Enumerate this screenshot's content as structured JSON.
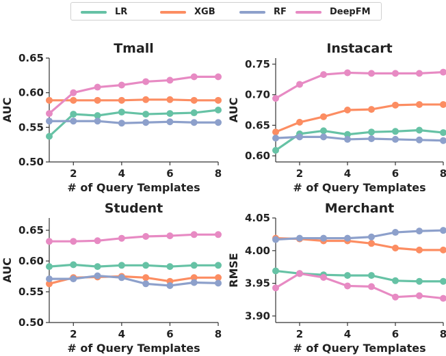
{
  "legend": {
    "items": [
      {
        "label": "LR",
        "color": "#66c2a5"
      },
      {
        "label": "XGB",
        "color": "#fc8d62"
      },
      {
        "label": "RF",
        "color": "#8da0cb"
      },
      {
        "label": "DeepFM",
        "color": "#e78ac3"
      }
    ]
  },
  "chart_data": [
    {
      "type": "line",
      "title": "Tmall",
      "xlabel": "# of Query Templates",
      "ylabel": "AUC",
      "x": [
        1,
        2,
        3,
        4,
        5,
        6,
        7,
        8
      ],
      "xlim": [
        1,
        8
      ],
      "ylim": [
        0.5,
        0.65
      ],
      "xticks": [
        2,
        4,
        6,
        8
      ],
      "yticks": [
        0.5,
        0.55,
        0.6,
        0.65
      ],
      "ytick_labels": [
        "0.50",
        "0.55",
        "0.60",
        "0.65"
      ],
      "series": [
        {
          "name": "LR",
          "values": [
            0.537,
            0.569,
            0.567,
            0.572,
            0.569,
            0.57,
            0.571,
            0.575
          ]
        },
        {
          "name": "XGB",
          "values": [
            0.589,
            0.589,
            0.589,
            0.589,
            0.59,
            0.59,
            0.589,
            0.589
          ]
        },
        {
          "name": "RF",
          "values": [
            0.559,
            0.559,
            0.559,
            0.556,
            0.557,
            0.558,
            0.557,
            0.557
          ]
        },
        {
          "name": "DeepFM",
          "values": [
            0.57,
            0.6,
            0.608,
            0.611,
            0.616,
            0.618,
            0.623,
            0.623
          ]
        }
      ]
    },
    {
      "type": "line",
      "title": "Instacart",
      "xlabel": "# of Query Templates",
      "ylabel": "AUC",
      "x": [
        1,
        2,
        3,
        4,
        5,
        6,
        7,
        8
      ],
      "xlim": [
        1,
        8
      ],
      "ylim": [
        0.59,
        0.76
      ],
      "xticks": [
        2,
        4,
        6,
        8
      ],
      "yticks": [
        0.6,
        0.65,
        0.7,
        0.75
      ],
      "ytick_labels": [
        "0.60",
        "0.65",
        "0.70",
        "0.75"
      ],
      "series": [
        {
          "name": "LR",
          "values": [
            0.609,
            0.636,
            0.641,
            0.635,
            0.639,
            0.64,
            0.642,
            0.638
          ]
        },
        {
          "name": "XGB",
          "values": [
            0.639,
            0.655,
            0.664,
            0.675,
            0.676,
            0.683,
            0.684,
            0.684
          ]
        },
        {
          "name": "RF",
          "values": [
            0.629,
            0.631,
            0.631,
            0.627,
            0.628,
            0.627,
            0.626,
            0.625
          ]
        },
        {
          "name": "DeepFM",
          "values": [
            0.694,
            0.717,
            0.733,
            0.736,
            0.735,
            0.735,
            0.735,
            0.737
          ]
        }
      ]
    },
    {
      "type": "line",
      "title": "Student",
      "xlabel": "# of Query Templates",
      "ylabel": "AUC",
      "x": [
        1,
        2,
        3,
        4,
        5,
        6,
        7,
        8
      ],
      "xlim": [
        1,
        8
      ],
      "ylim": [
        0.5,
        0.67
      ],
      "xticks": [
        2,
        4,
        6,
        8
      ],
      "yticks": [
        0.5,
        0.55,
        0.6,
        0.65
      ],
      "ytick_labels": [
        "0.50",
        "0.55",
        "0.60",
        "0.65"
      ],
      "series": [
        {
          "name": "LR",
          "values": [
            0.591,
            0.594,
            0.591,
            0.593,
            0.593,
            0.591,
            0.593,
            0.593
          ]
        },
        {
          "name": "XGB",
          "values": [
            0.563,
            0.573,
            0.574,
            0.575,
            0.573,
            0.567,
            0.573,
            0.573
          ]
        },
        {
          "name": "RF",
          "values": [
            0.571,
            0.571,
            0.576,
            0.573,
            0.563,
            0.56,
            0.565,
            0.564
          ]
        },
        {
          "name": "DeepFM",
          "values": [
            0.632,
            0.632,
            0.633,
            0.637,
            0.64,
            0.641,
            0.643,
            0.643
          ]
        }
      ]
    },
    {
      "type": "line",
      "title": "Merchant",
      "xlabel": "# of Query Templates",
      "ylabel": "RMSE",
      "x": [
        1,
        2,
        3,
        4,
        5,
        6,
        7,
        8
      ],
      "xlim": [
        1,
        8
      ],
      "ylim": [
        3.89,
        4.05
      ],
      "xticks": [
        2,
        4,
        6,
        8
      ],
      "yticks": [
        3.9,
        3.95,
        4.0,
        4.05
      ],
      "ytick_labels": [
        "3.90",
        "3.95",
        "4.00",
        "4.05"
      ],
      "series": [
        {
          "name": "LR",
          "values": [
            3.969,
            3.965,
            3.963,
            3.962,
            3.962,
            3.954,
            3.953,
            3.953
          ]
        },
        {
          "name": "XGB",
          "values": [
            4.019,
            4.018,
            4.015,
            4.015,
            4.011,
            4.004,
            4.001,
            4.001
          ]
        },
        {
          "name": "RF",
          "values": [
            4.017,
            4.019,
            4.019,
            4.019,
            4.021,
            4.028,
            4.03,
            4.031
          ]
        },
        {
          "name": "DeepFM",
          "values": [
            3.943,
            3.965,
            3.959,
            3.946,
            3.945,
            3.929,
            3.931,
            3.927
          ]
        }
      ]
    }
  ]
}
